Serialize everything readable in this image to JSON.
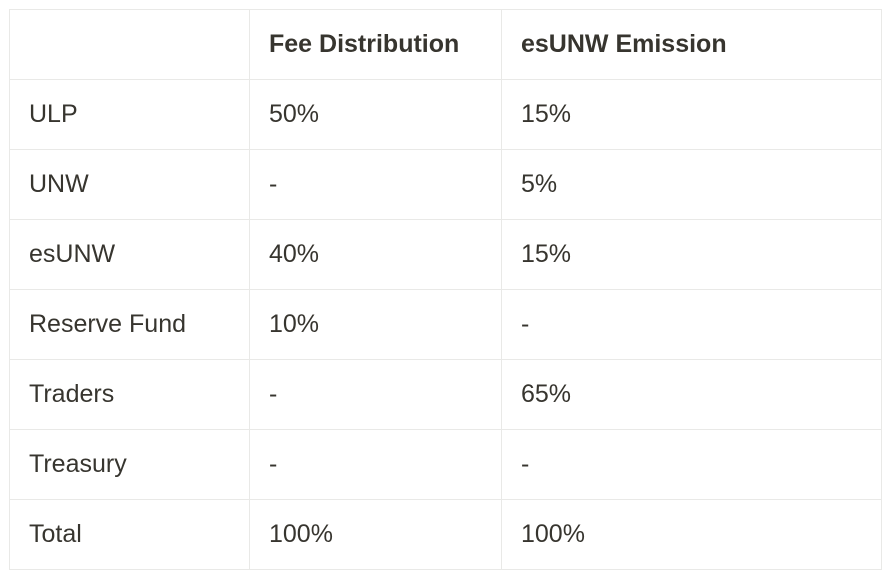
{
  "table": {
    "headers": [
      "",
      "Fee Distribution",
      "esUNW Emission"
    ],
    "rows": [
      [
        "ULP",
        "50%",
        "15%"
      ],
      [
        "UNW",
        "-",
        "5%"
      ],
      [
        "esUNW",
        "40%",
        "15%"
      ],
      [
        "Reserve Fund",
        "10%",
        "-"
      ],
      [
        "Traders",
        "-",
        "65%"
      ],
      [
        "Treasury",
        "-",
        "-"
      ],
      [
        "Total",
        "100%",
        "100%"
      ]
    ]
  }
}
